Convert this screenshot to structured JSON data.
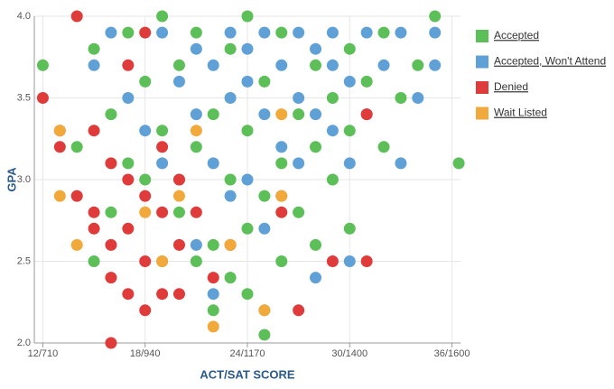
{
  "chart_data": {
    "type": "scatter",
    "x_label": "ACT/SAT SCORE",
    "y_label": "GPA",
    "xlim": [
      11.5,
      36.5
    ],
    "ylim": [
      2.0,
      4.0
    ],
    "xticks": [
      {
        "value": 12,
        "label": "12/710"
      },
      {
        "value": 18,
        "label": "18/940"
      },
      {
        "value": 24,
        "label": "24/1170"
      },
      {
        "value": 30,
        "label": "30/1400"
      },
      {
        "value": 36,
        "label": "36/1600"
      }
    ],
    "yticks": [
      {
        "value": 2,
        "label": "2.0"
      },
      2.5,
      {
        "value": 3,
        "label": "3.0"
      },
      3.5,
      {
        "value": 4,
        "label": "4.0"
      }
    ],
    "grid": true,
    "legend": "right",
    "series": [
      {
        "name": "Accepted",
        "color": "#5cbf58",
        "x": [
          12,
          14,
          15,
          15,
          16,
          16,
          17,
          17,
          18,
          18,
          19,
          19,
          19,
          20,
          20,
          21,
          21,
          21,
          22,
          22,
          22,
          23,
          23,
          23,
          24,
          24,
          24,
          24,
          25,
          25,
          25,
          25,
          26,
          26,
          26,
          27,
          27,
          28,
          28,
          28,
          29,
          29,
          30,
          30,
          30,
          31,
          32,
          32,
          33,
          34,
          35,
          36.4
        ],
        "values": [
          3.7,
          3.2,
          2.5,
          3.8,
          3.4,
          2.8,
          3.1,
          3.9,
          3.6,
          3.0,
          3.3,
          2.5,
          4.0,
          2.8,
          3.7,
          3.2,
          2.5,
          3.9,
          2.6,
          3.4,
          2.2,
          3.0,
          3.8,
          2.4,
          3.3,
          2.7,
          2.3,
          4.0,
          3.6,
          2.9,
          2.2,
          2.05,
          3.1,
          3.9,
          2.5,
          3.4,
          2.8,
          3.7,
          3.2,
          2.6,
          3.5,
          3.0,
          3.8,
          3.3,
          2.7,
          3.6,
          3.2,
          3.9,
          3.5,
          3.7,
          4.0,
          3.1
        ]
      },
      {
        "name": "Accepted, Won't Attend",
        "color": "#5fa0d6",
        "x": [
          15,
          16,
          17,
          18,
          19,
          19,
          20,
          20,
          21,
          21,
          21,
          22,
          22,
          22,
          23,
          23,
          23,
          24,
          24,
          24,
          25,
          25,
          25,
          26,
          26,
          26,
          27,
          27,
          27,
          28,
          28,
          28,
          29,
          29,
          29,
          30,
          30,
          30,
          31,
          31,
          32,
          33,
          33,
          34,
          35,
          35
        ],
        "values": [
          3.7,
          3.9,
          3.5,
          3.3,
          3.9,
          3.1,
          3.6,
          3.0,
          2.6,
          3.8,
          3.4,
          3.7,
          3.1,
          2.3,
          3.9,
          3.5,
          2.9,
          3.6,
          3.0,
          3.8,
          3.4,
          3.9,
          2.7,
          3.7,
          3.2,
          2.9,
          3.9,
          3.5,
          3.1,
          3.8,
          3.4,
          2.4,
          3.7,
          3.3,
          3.9,
          3.6,
          3.1,
          2.5,
          3.4,
          3.9,
          3.7,
          3.9,
          3.1,
          3.5,
          3.7,
          3.9
        ]
      },
      {
        "name": "Denied",
        "color": "#e03b3b",
        "x": [
          12,
          13,
          13,
          14,
          14,
          15,
          15,
          15,
          16,
          16,
          16,
          16,
          17,
          17,
          17,
          17,
          18,
          18,
          18,
          18,
          19,
          19,
          19,
          20,
          20,
          20,
          21,
          22,
          23,
          26,
          27,
          29,
          31,
          31
        ],
        "values": [
          3.5,
          3.3,
          3.2,
          4.0,
          2.9,
          3.3,
          2.7,
          2.8,
          2.0,
          2.4,
          2.6,
          3.1,
          2.3,
          2.7,
          3.7,
          3.0,
          2.2,
          2.9,
          2.5,
          3.9,
          2.3,
          2.8,
          3.2,
          2.3,
          2.6,
          3.0,
          2.8,
          2.4,
          2.6,
          2.8,
          2.2,
          2.5,
          2.5,
          3.4
        ]
      },
      {
        "name": "Wait Listed",
        "color": "#f2a93b",
        "x": [
          13,
          13,
          14,
          18,
          19,
          20,
          21,
          22,
          23,
          25,
          26,
          26
        ],
        "values": [
          3.3,
          2.9,
          2.6,
          2.8,
          2.5,
          2.9,
          3.3,
          2.1,
          2.6,
          2.2,
          2.9,
          3.4
        ]
      }
    ]
  }
}
